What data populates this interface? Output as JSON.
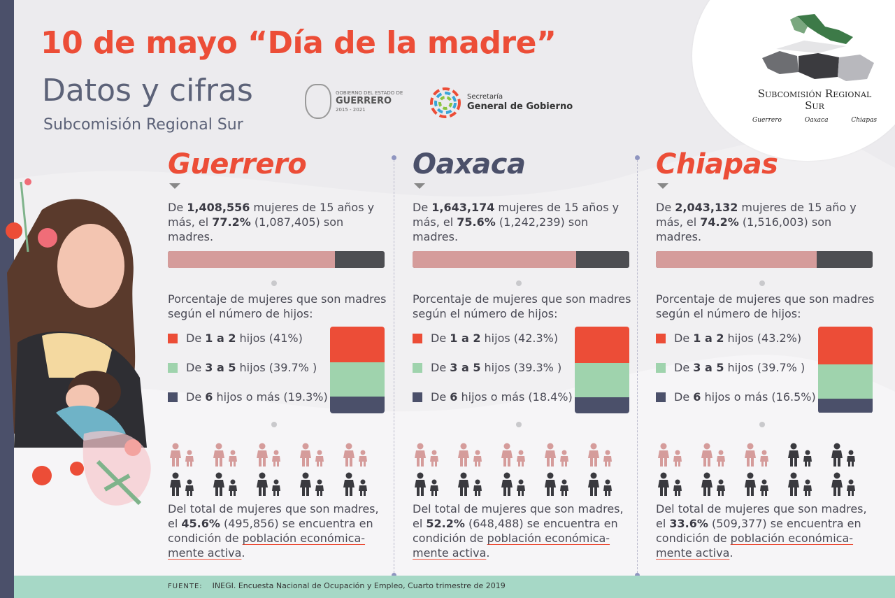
{
  "header": {
    "title": "10 de mayo “Día de la madre”",
    "subtitle": "Datos y cifras",
    "subtitle2": "Subcomisión Regional Sur"
  },
  "logos": {
    "guerrero_small": "GOBIERNO DEL ESTADO DE",
    "guerrero_name": "GUERRERO",
    "guerrero_years": "2015 - 2021",
    "sgg_line1": "Secretaría",
    "sgg_line2": "General de Gobierno"
  },
  "corner": {
    "title_line1": "Subcomisión Regional",
    "title_line2": "Sur",
    "states": [
      "Guerrero",
      "Oaxaca",
      "Chiapas"
    ]
  },
  "colors": {
    "accent": "#ec4d37",
    "navy": "#4b506a",
    "pink_bar": "#d59c9b",
    "dark_bar": "#4d4e52",
    "green": "#9fd3ad",
    "orange": "#ec4d37"
  },
  "columns": [
    {
      "name": "Guerrero",
      "name_color": "#ec4d37",
      "stat_pre": "De ",
      "total": "1,408,556",
      "stat_mid": " mujeres de 15 años y más, el ",
      "pct": "77.2%",
      "stat_post": " (1,087,405) son madres.",
      "pct_value": 0.772,
      "pct_title": "Porcentaje de mujeres que son madres según el número de hijos:",
      "legend": [
        {
          "pre": "De ",
          "bold": "1 a 2",
          "post": " hijos (41%)",
          "value": 41
        },
        {
          "pre": "De ",
          "bold": "3 a 5",
          "post": " hijos (39.7% )",
          "value": 39.7
        },
        {
          "pre": "De ",
          "bold": "6",
          "post": " hijos o más (19.3%)",
          "value": 19.3
        }
      ],
      "active_count": 5,
      "final_pre": "Del total de mujeres que son madres, el ",
      "final_pct": "45.6%",
      "final_mid": " (495,856) se encuentra en condición de ",
      "final_ul": "población económica-mente activa",
      "final_post": "."
    },
    {
      "name": "Oaxaca",
      "name_color": "#4b506a",
      "stat_pre": "De ",
      "total": "1,643,174",
      "stat_mid": " mujeres de 15 años y más, el ",
      "pct": "75.6%",
      "stat_post": " (1,242,239) son madres.",
      "pct_value": 0.756,
      "pct_title": "Porcentaje de mujeres que son madres según el número de hijos:",
      "legend": [
        {
          "pre": "De ",
          "bold": "1 a 2",
          "post": " hijos (42.3%)",
          "value": 42.3
        },
        {
          "pre": "De ",
          "bold": "3 a 5",
          "post": " hijos (39.3% )",
          "value": 39.3
        },
        {
          "pre": "De ",
          "bold": "6",
          "post": " hijos o más (18.4%)",
          "value": 18.4
        }
      ],
      "active_count": 5,
      "final_pre": "Del total de mujeres que son madres, el ",
      "final_pct": "52.2%",
      "final_mid": " (648,488) se encuentra en condición de ",
      "final_ul": "población económica-mente activa",
      "final_post": "."
    },
    {
      "name": "Chiapas",
      "name_color": "#ec4d37",
      "stat_pre": "De ",
      "total": "2,043,132",
      "stat_mid": " mujeres de 15 año y más, el ",
      "pct": "74.2%",
      "stat_post": " (1,516,003) son madres.",
      "pct_value": 0.742,
      "pct_title": "Porcentaje de mujeres que son madres según el número de hijos:",
      "legend": [
        {
          "pre": "De ",
          "bold": "1 a 2",
          "post": " hijos (43.2%)",
          "value": 43.2
        },
        {
          "pre": "De ",
          "bold": "3 a 5",
          "post": " hijos (39.7% )",
          "value": 39.7
        },
        {
          "pre": "De ",
          "bold": "6",
          "post": " hijos o más (16.5%)",
          "value": 16.5
        }
      ],
      "active_count": 3,
      "final_pre": "Del total de mujeres que son madres, el ",
      "final_pct": "33.6%",
      "final_mid": " (509,377) se encuentra en condición de ",
      "final_ul": "población económica-mente activa",
      "final_post": "."
    }
  ],
  "footer": {
    "label": "FUENTE:",
    "source": "INEGI. Encuesta Nacional de Ocupación y Empleo, Cuarto trimestre de 2019"
  }
}
